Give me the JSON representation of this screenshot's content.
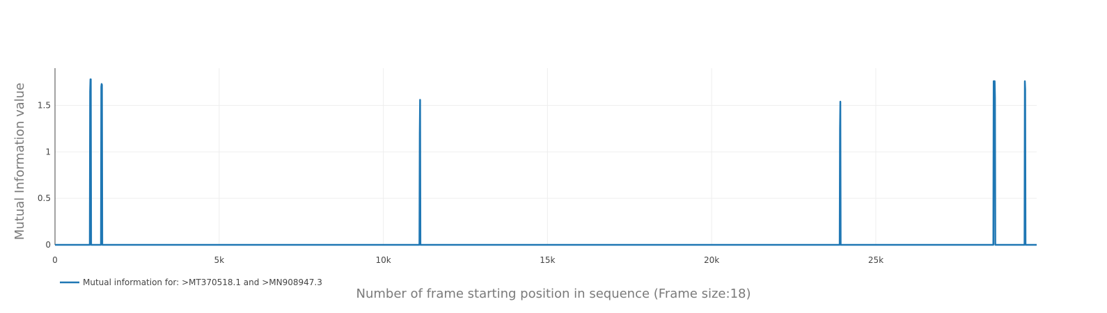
{
  "chart_data": {
    "type": "line",
    "title": "",
    "xlabel": "Number of frame starting position in sequence (Frame size:18)",
    "ylabel": "Mutual Information value",
    "xlim": [
      0,
      29900
    ],
    "ylim": [
      0,
      1.9
    ],
    "grid": true,
    "x_ticks": [
      {
        "value": 0,
        "label": "0"
      },
      {
        "value": 5000,
        "label": "5k"
      },
      {
        "value": 10000,
        "label": "10k"
      },
      {
        "value": 15000,
        "label": "15k"
      },
      {
        "value": 20000,
        "label": "20k"
      },
      {
        "value": 25000,
        "label": "25k"
      }
    ],
    "y_ticks": [
      {
        "value": 0,
        "label": "0"
      },
      {
        "value": 0.5,
        "label": "0.5"
      },
      {
        "value": 1,
        "label": "1"
      },
      {
        "value": 1.5,
        "label": "1.5"
      }
    ],
    "legend_position": "bottom-left",
    "series": [
      {
        "name": "Mutual information for: >MT370518.1 and >MN908947.3",
        "color": "#1f77b4",
        "points": [
          [
            0,
            0
          ],
          [
            1060,
            0
          ],
          [
            1070,
            1.65
          ],
          [
            1080,
            1.78
          ],
          [
            1090,
            1.78
          ],
          [
            1100,
            0
          ],
          [
            1400,
            0
          ],
          [
            1410,
            1.7
          ],
          [
            1420,
            1.73
          ],
          [
            1430,
            1.72
          ],
          [
            1440,
            0
          ],
          [
            11100,
            0
          ],
          [
            11110,
            1.2
          ],
          [
            11120,
            1.56
          ],
          [
            11130,
            0
          ],
          [
            23900,
            0
          ],
          [
            23910,
            1.25
          ],
          [
            23920,
            1.54
          ],
          [
            23930,
            0
          ],
          [
            28580,
            0
          ],
          [
            28590,
            1.76
          ],
          [
            28600,
            1.76
          ],
          [
            28610,
            1.76
          ],
          [
            28620,
            1.76
          ],
          [
            28630,
            1.58
          ],
          [
            28640,
            0
          ],
          [
            29530,
            0
          ],
          [
            29540,
            1.76
          ],
          [
            29550,
            1.67
          ],
          [
            29560,
            0
          ],
          [
            29900,
            0
          ]
        ]
      }
    ]
  }
}
